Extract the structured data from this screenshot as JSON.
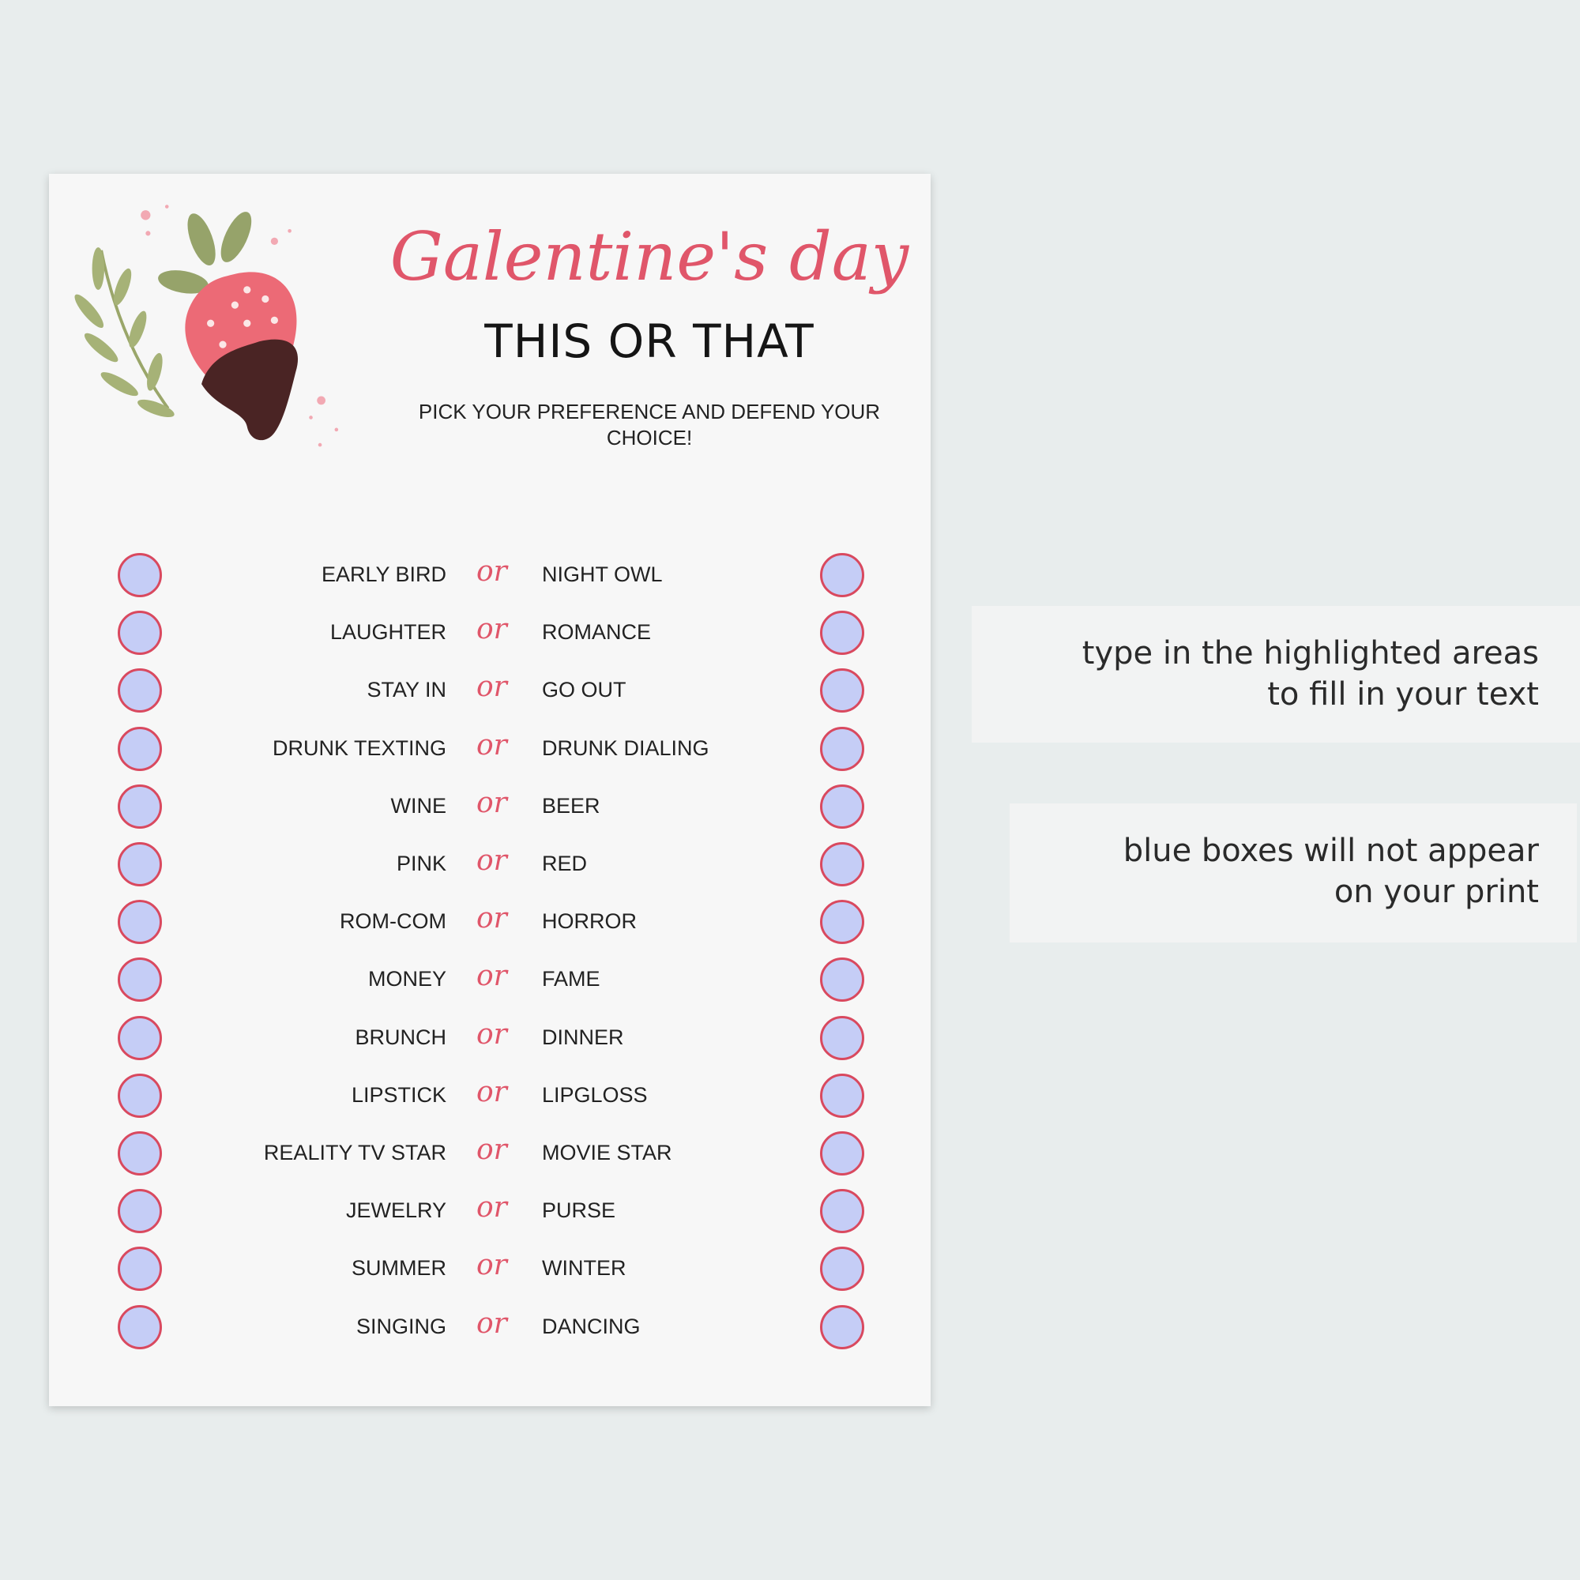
{
  "worksheet": {
    "title": "Galentine's day",
    "subtitle": "THIS OR THAT",
    "instructions": "PICK YOUR PREFERENCE AND DEFEND YOUR CHOICE!",
    "separator": "or",
    "pairs": [
      {
        "left": "EARLY BIRD",
        "right": "NIGHT OWL"
      },
      {
        "left": "LAUGHTER",
        "right": "ROMANCE"
      },
      {
        "left": "STAY IN",
        "right": "GO OUT"
      },
      {
        "left": "DRUNK TEXTING",
        "right": "DRUNK DIALING"
      },
      {
        "left": "WINE",
        "right": "BEER"
      },
      {
        "left": "PINK",
        "right": "RED"
      },
      {
        "left": "ROM-COM",
        "right": "HORROR"
      },
      {
        "left": "MONEY",
        "right": "FAME"
      },
      {
        "left": "BRUNCH",
        "right": "DINNER"
      },
      {
        "left": "LIPSTICK",
        "right": "LIPGLOSS"
      },
      {
        "left": "REALITY TV STAR",
        "right": "MOVIE STAR"
      },
      {
        "left": "JEWELRY",
        "right": "PURSE"
      },
      {
        "left": "SUMMER",
        "right": "WINTER"
      },
      {
        "left": "SINGING",
        "right": "DANCING"
      }
    ]
  },
  "notes": [
    {
      "line1": "type in the highlighted areas",
      "line2": "to fill in your text"
    },
    {
      "line1": "blue boxes will not appear",
      "line2": "on your print"
    }
  ],
  "colors": {
    "accent": "#e0566a",
    "checkbox_fill": "#c5cdf6",
    "checkbox_border": "#d9495f",
    "background": "#e8eded"
  },
  "icons": [
    "chocolate-strawberry-illustration",
    "leaf-branch-illustration"
  ]
}
